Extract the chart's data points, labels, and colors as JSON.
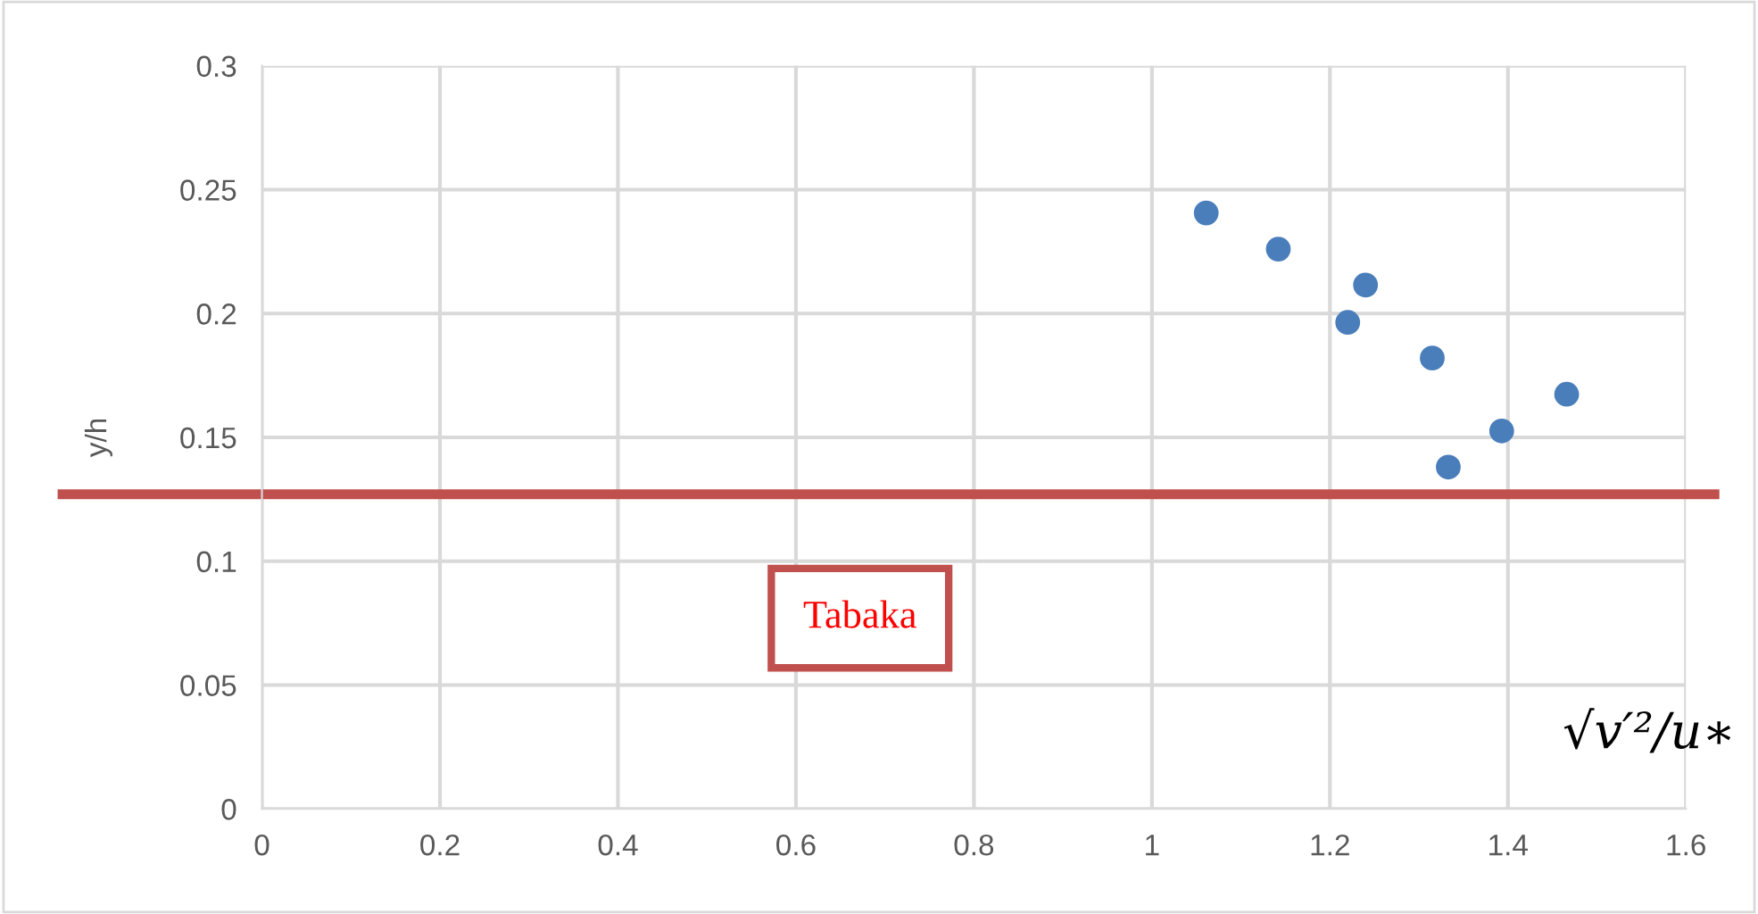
{
  "chart_data": {
    "type": "scatter",
    "xlabel": "√v′²/u∗",
    "ylabel": "y/h",
    "x": [
      1.061,
      1.142,
      1.24,
      1.22,
      1.315,
      1.393,
      1.333,
      1.466
    ],
    "series": [
      {
        "color": "#4a7ebb",
        "values": [
          0.2406,
          0.226,
          0.2115,
          0.1964,
          0.182,
          0.1526,
          0.138,
          0.1674
        ]
      }
    ],
    "xlim": [
      0,
      1.6
    ],
    "xticks": [
      0,
      0.2,
      0.4,
      0.6,
      0.8,
      1,
      1.2,
      1.4,
      1.6
    ],
    "ylim": [
      0,
      0.3
    ],
    "yticks": [
      0,
      0.05,
      0.1,
      0.15,
      0.2,
      0.25,
      0.3
    ],
    "grid": true,
    "marker": "circle",
    "legend": false,
    "ref_lines": [
      {
        "axis": "y",
        "value": 0.127,
        "label": "Tabaka",
        "color": "#c0504d"
      }
    ]
  }
}
